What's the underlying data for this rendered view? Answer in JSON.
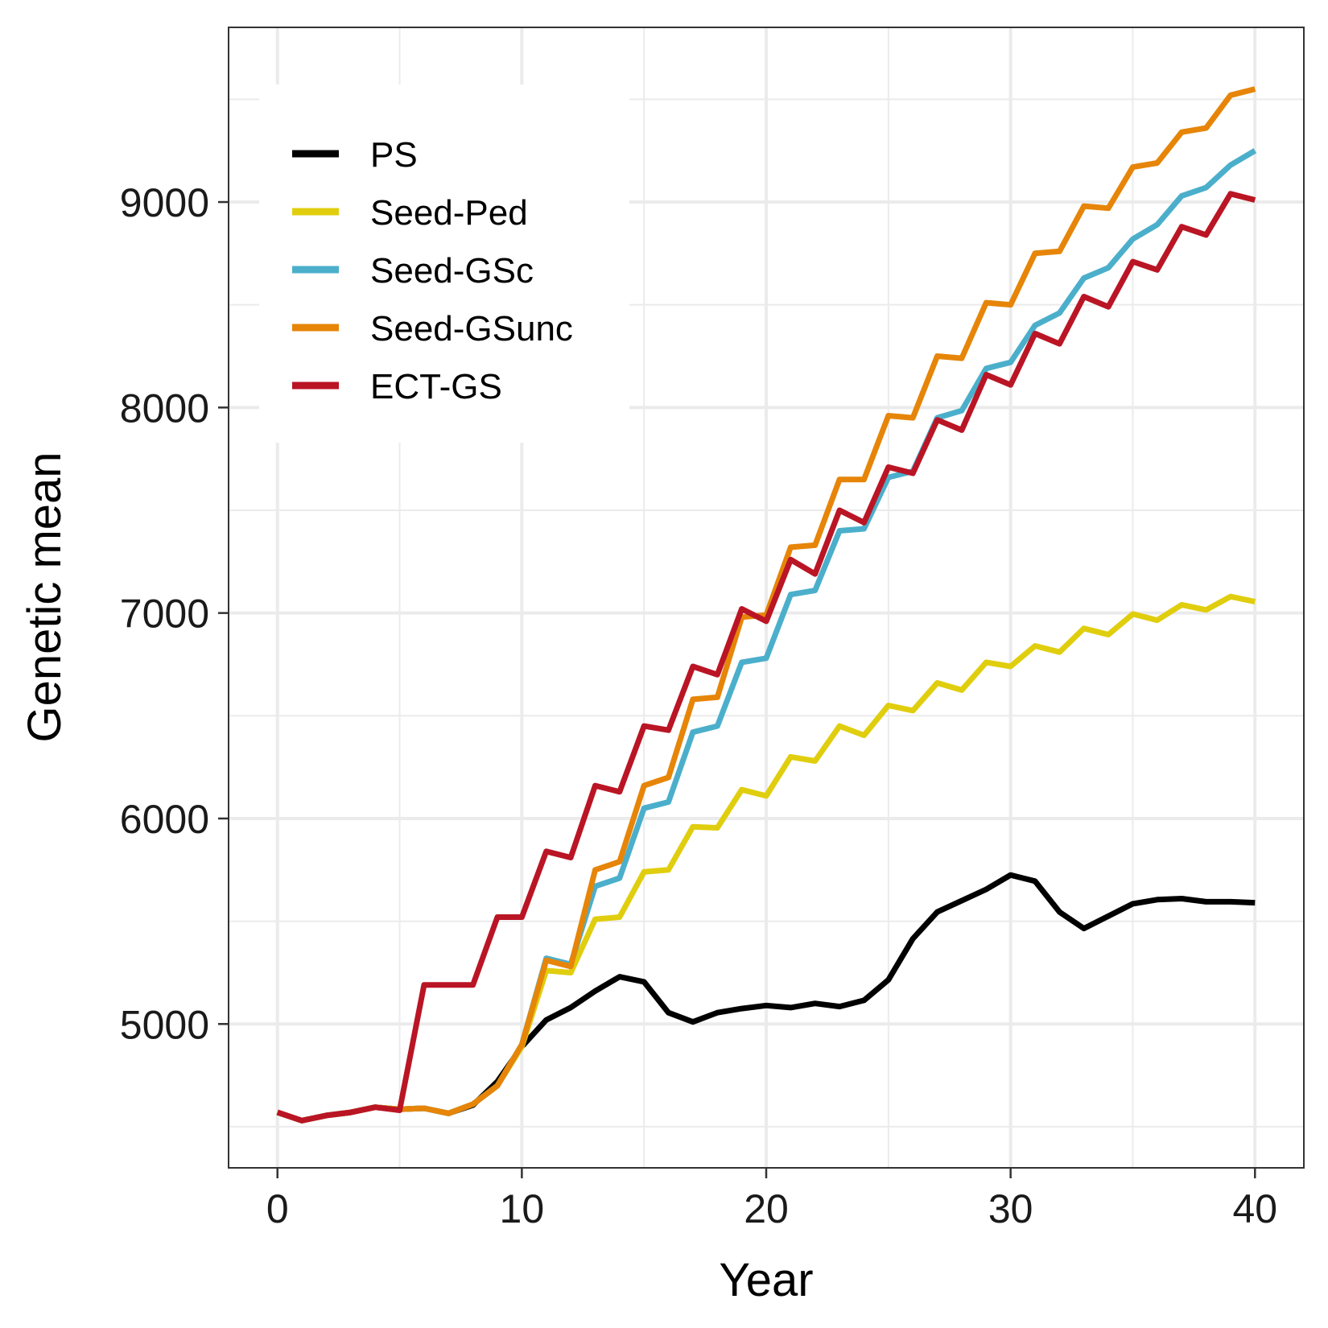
{
  "chart_data": {
    "type": "line",
    "title": "",
    "xlabel": "Year",
    "ylabel": "Genetic mean",
    "xlim": [
      -2,
      42
    ],
    "ylim": [
      4300,
      9850
    ],
    "xticks": [
      0,
      10,
      20,
      30,
      40
    ],
    "yticks": [
      5000,
      6000,
      7000,
      8000,
      9000
    ],
    "grid": true,
    "legend_position": "top-left",
    "x": [
      0,
      1,
      2,
      3,
      4,
      5,
      6,
      7,
      8,
      9,
      10,
      11,
      12,
      13,
      14,
      15,
      16,
      17,
      18,
      19,
      20,
      21,
      22,
      23,
      24,
      25,
      26,
      27,
      28,
      29,
      30,
      31,
      32,
      33,
      34,
      35,
      36,
      37,
      38,
      39,
      40
    ],
    "series": [
      {
        "name": "PS",
        "color": "#000000",
        "values": [
          4570,
          4530,
          4555,
          4570,
          4595,
          4585,
          4590,
          4565,
          4605,
          4720,
          4890,
          5020,
          5080,
          5160,
          5230,
          5205,
          5055,
          5010,
          5055,
          5075,
          5090,
          5080,
          5100,
          5085,
          5115,
          5215,
          5415,
          5545,
          5600,
          5655,
          5725,
          5695,
          5545,
          5465,
          5525,
          5585,
          5605,
          5610,
          5595,
          5595,
          5590
        ]
      },
      {
        "name": "Seed-Ped",
        "color": "#E0CE0E",
        "values": [
          4570,
          4530,
          4555,
          4570,
          4595,
          4585,
          4590,
          4565,
          4610,
          4700,
          4890,
          5260,
          5250,
          5510,
          5520,
          5740,
          5750,
          5960,
          5955,
          6140,
          6110,
          6300,
          6280,
          6450,
          6405,
          6550,
          6525,
          6660,
          6625,
          6760,
          6740,
          6840,
          6810,
          6925,
          6895,
          6995,
          6965,
          7040,
          7015,
          7080,
          7055
        ]
      },
      {
        "name": "Seed-GSc",
        "color": "#4BAFCB",
        "values": [
          4570,
          4530,
          4555,
          4570,
          4595,
          4585,
          4590,
          4565,
          4610,
          4700,
          4900,
          5320,
          5290,
          5670,
          5710,
          6050,
          6080,
          6420,
          6450,
          6760,
          6780,
          7090,
          7110,
          7400,
          7410,
          7660,
          7690,
          7950,
          7985,
          8190,
          8220,
          8400,
          8460,
          8630,
          8680,
          8820,
          8890,
          9030,
          9070,
          9180,
          9250
        ]
      },
      {
        "name": "Seed-GSunc",
        "color": "#E68508",
        "values": [
          4570,
          4530,
          4555,
          4570,
          4595,
          4585,
          4590,
          4565,
          4610,
          4700,
          4900,
          5310,
          5280,
          5750,
          5790,
          6160,
          6200,
          6580,
          6590,
          6980,
          6990,
          7320,
          7330,
          7650,
          7650,
          7960,
          7950,
          8250,
          8240,
          8510,
          8500,
          8750,
          8760,
          8980,
          8970,
          9170,
          9190,
          9340,
          9360,
          9520,
          9550
        ]
      },
      {
        "name": "ECT-GS",
        "color": "#BA1525",
        "values": [
          4570,
          4530,
          4555,
          4570,
          4595,
          4580,
          5190,
          5190,
          5190,
          5520,
          5520,
          5840,
          5810,
          6160,
          6130,
          6450,
          6430,
          6740,
          6700,
          7020,
          6960,
          7260,
          7190,
          7500,
          7440,
          7710,
          7680,
          7940,
          7890,
          8160,
          8110,
          8360,
          8310,
          8540,
          8490,
          8710,
          8670,
          8880,
          8840,
          9040,
          9010
        ]
      }
    ]
  }
}
